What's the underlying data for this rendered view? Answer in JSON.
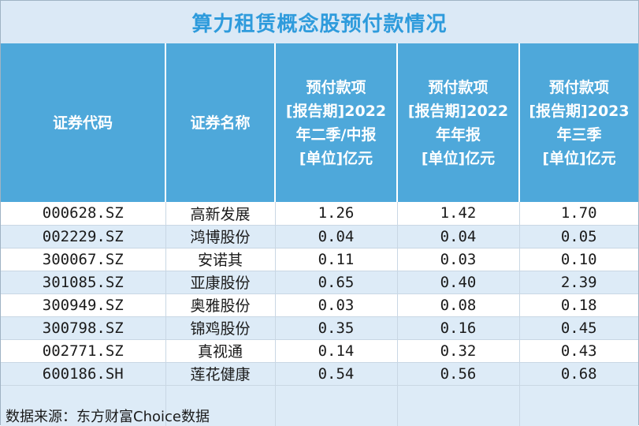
{
  "title": "算力租赁概念股预付款情况",
  "columns": [
    {
      "lines": [
        "证券代码"
      ]
    },
    {
      "lines": [
        "证券名称"
      ]
    },
    {
      "lines": [
        "预付款项",
        "[报告期]2022",
        "年二季/中报",
        "[单位]亿元"
      ]
    },
    {
      "lines": [
        "预付款项",
        "[报告期]2022",
        "年年报",
        "[单位]亿元"
      ]
    },
    {
      "lines": [
        "预付款项",
        "[报告期]2023",
        "年三季",
        "[单位]亿元"
      ]
    }
  ],
  "rows": [
    {
      "code": "000628.SZ",
      "name": "高新发展",
      "v1": "1.26",
      "v2": "1.42",
      "v3": "1.70"
    },
    {
      "code": "002229.SZ",
      "name": "鸿博股份",
      "v1": "0.04",
      "v2": "0.04",
      "v3": "0.05"
    },
    {
      "code": "300067.SZ",
      "name": "安诺其",
      "v1": "0.11",
      "v2": "0.03",
      "v3": "0.10"
    },
    {
      "code": "301085.SZ",
      "name": "亚康股份",
      "v1": "0.65",
      "v2": "0.40",
      "v3": "2.39"
    },
    {
      "code": "300949.SZ",
      "name": "奥雅股份",
      "v1": "0.03",
      "v2": "0.08",
      "v3": "0.18"
    },
    {
      "code": "300798.SZ",
      "name": "锦鸡股份",
      "v1": "0.35",
      "v2": "0.16",
      "v3": "0.45"
    },
    {
      "code": "002771.SZ",
      "name": "真视通",
      "v1": "0.14",
      "v2": "0.32",
      "v3": "0.43"
    },
    {
      "code": "600186.SH",
      "name": "莲花健康",
      "v1": "0.54",
      "v2": "0.56",
      "v3": "0.68"
    }
  ],
  "source": "数据来源：东方财富Choice数据",
  "colors": {
    "title_text": "#2e9bdc",
    "header_bg": "#4ea8da",
    "band_bg": "#ddebf7"
  }
}
